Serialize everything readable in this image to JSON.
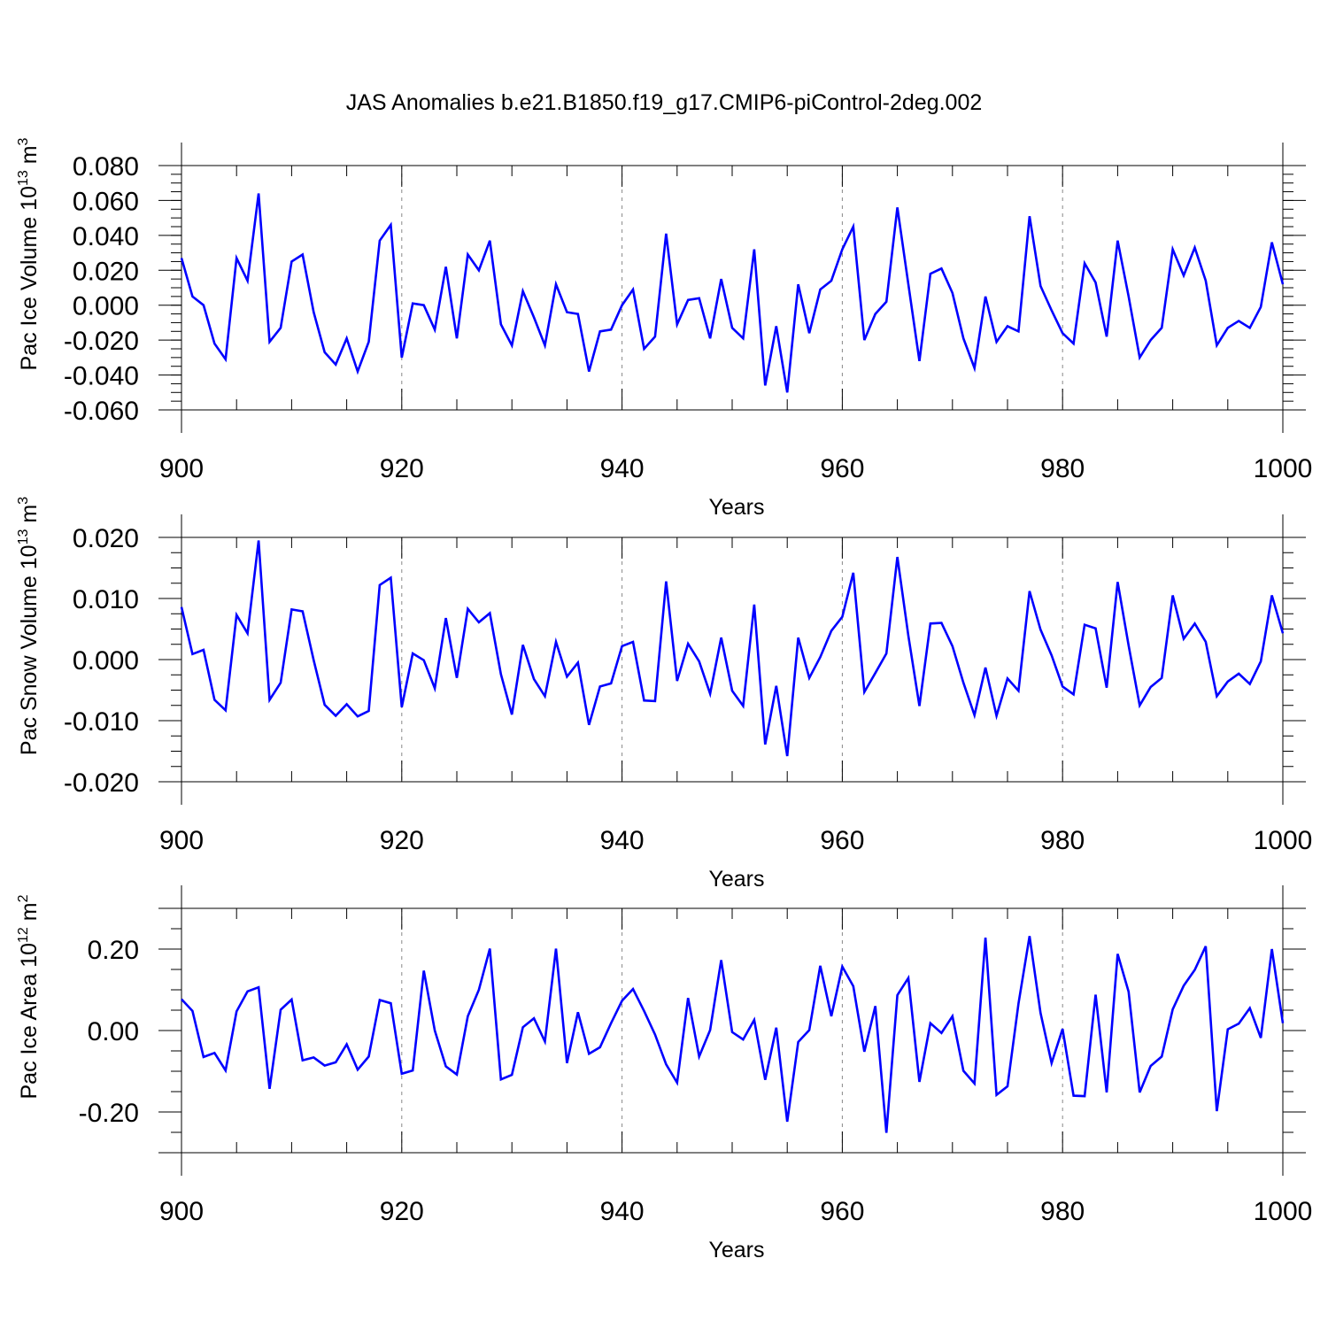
{
  "title": "JAS Anomalies b.e21.B1850.f19_g17.CMIP6-piControl-2deg.002",
  "colors": {
    "line": "#0000ff",
    "axis": "#000000",
    "grid": "#888888"
  },
  "chart_data": [
    {
      "type": "line",
      "ylabel_text": "Pac Ice Volume 10",
      "ylabel_exp": "13",
      "ylabel_unit": "m",
      "ylabel_unit_exp": "3",
      "xlabel": "Years",
      "xlim": [
        900,
        1000
      ],
      "ylim": [
        -0.06,
        0.08
      ],
      "yticks": [
        -0.06,
        -0.04,
        -0.02,
        0.0,
        0.02,
        0.04,
        0.06,
        0.08
      ],
      "ytick_labels": [
        "-0.060",
        "-0.040",
        "-0.020",
        "0.000",
        "0.020",
        "0.040",
        "0.060",
        "0.080"
      ],
      "xticks": [
        900,
        920,
        940,
        960,
        980,
        1000
      ],
      "xtick_labels": [
        "900",
        "920",
        "940",
        "960",
        "980",
        "1000"
      ],
      "x_start": 900,
      "values": [
        0.027,
        0.005,
        0.0,
        -0.022,
        -0.031,
        0.027,
        0.014,
        0.064,
        -0.021,
        -0.013,
        0.025,
        0.029,
        -0.004,
        -0.027,
        -0.034,
        -0.019,
        -0.038,
        -0.021,
        0.037,
        0.046,
        -0.03,
        0.001,
        0.0,
        -0.014,
        0.022,
        -0.019,
        0.029,
        0.02,
        0.037,
        -0.011,
        -0.023,
        0.008,
        -0.007,
        -0.023,
        0.012,
        -0.004,
        -0.005,
        -0.038,
        -0.015,
        -0.014,
        0.0,
        0.009,
        -0.025,
        -0.018,
        0.041,
        -0.011,
        0.003,
        0.004,
        -0.019,
        0.015,
        -0.013,
        -0.019,
        0.032,
        -0.046,
        -0.012,
        -0.05,
        0.012,
        -0.016,
        0.009,
        0.014,
        0.032,
        0.045,
        -0.02,
        -0.005,
        0.002,
        0.056,
        0.012,
        -0.032,
        0.018,
        0.021,
        0.007,
        -0.019,
        -0.036,
        0.005,
        -0.021,
        -0.012,
        -0.015,
        0.051,
        0.011,
        -0.003,
        -0.016,
        -0.022,
        0.024,
        0.013,
        -0.018,
        0.037,
        0.005,
        -0.03,
        -0.02,
        -0.013,
        0.032,
        0.017,
        0.033,
        0.014,
        -0.023,
        -0.013,
        -0.009,
        -0.013,
        -0.001,
        0.036,
        0.012
      ]
    },
    {
      "type": "line",
      "ylabel_text": "Pac Snow Volume 10",
      "ylabel_exp": "13",
      "ylabel_unit": "m",
      "ylabel_unit_exp": "3",
      "xlabel": "Years",
      "xlim": [
        900,
        1000
      ],
      "ylim": [
        -0.02,
        0.02
      ],
      "yticks": [
        -0.02,
        -0.01,
        0.0,
        0.01,
        0.02
      ],
      "ytick_labels": [
        "-0.020",
        "-0.010",
        "0.000",
        "0.010",
        "0.020"
      ],
      "xticks": [
        900,
        920,
        940,
        960,
        980,
        1000
      ],
      "xtick_labels": [
        "900",
        "920",
        "940",
        "960",
        "980",
        "1000"
      ],
      "x_start": 900,
      "values": [
        0.0086,
        0.0009,
        0.0016,
        -0.0066,
        -0.0083,
        0.0073,
        0.0043,
        0.0195,
        -0.0066,
        -0.0038,
        0.0082,
        0.0079,
        -0.0001,
        -0.0074,
        -0.0092,
        -0.0073,
        -0.0093,
        -0.0084,
        0.0122,
        0.0134,
        -0.0078,
        0.001,
        -0.0001,
        -0.0047,
        0.0068,
        -0.003,
        0.0083,
        0.0061,
        0.0076,
        -0.0024,
        -0.009,
        0.0024,
        -0.0032,
        -0.006,
        0.0029,
        -0.0028,
        -0.0005,
        -0.0107,
        -0.0044,
        -0.0039,
        0.0022,
        0.0029,
        -0.0067,
        -0.0068,
        0.0128,
        -0.0035,
        0.0026,
        -0.0003,
        -0.0056,
        0.0036,
        -0.0051,
        -0.0076,
        0.009,
        -0.0139,
        -0.0043,
        -0.0158,
        0.0036,
        -0.003,
        0.0004,
        0.0047,
        0.007,
        0.0142,
        -0.0053,
        -0.0022,
        0.001,
        0.0168,
        0.0039,
        -0.0076,
        0.0059,
        0.006,
        0.0022,
        -0.0038,
        -0.0091,
        -0.0013,
        -0.0092,
        -0.0031,
        -0.0051,
        0.0112,
        0.0049,
        0.0007,
        -0.0044,
        -0.0057,
        0.0057,
        0.0051,
        -0.0046,
        0.0127,
        0.0023,
        -0.0075,
        -0.0045,
        -0.003,
        0.0105,
        0.0034,
        0.0059,
        0.0029,
        -0.006,
        -0.0036,
        -0.0023,
        -0.004,
        -0.0003,
        0.0105,
        0.0043
      ]
    },
    {
      "type": "line",
      "ylabel_text": "Pac Ice Area 10",
      "ylabel_exp": "12",
      "ylabel_unit": "m",
      "ylabel_unit_exp": "2",
      "xlabel": "Years",
      "xlim": [
        900,
        1000
      ],
      "ylim": [
        -0.3,
        0.3
      ],
      "yticks": [
        -0.2,
        0.0,
        0.2
      ],
      "ytick_labels": [
        "-0.20",
        "0.00",
        "0.20"
      ],
      "xticks": [
        900,
        920,
        940,
        960,
        980,
        1000
      ],
      "xtick_labels": [
        "900",
        "920",
        "940",
        "960",
        "980",
        "1000"
      ],
      "x_start": 900,
      "values": [
        0.077,
        0.048,
        -0.065,
        -0.055,
        -0.098,
        0.047,
        0.096,
        0.106,
        -0.143,
        0.051,
        0.076,
        -0.073,
        -0.066,
        -0.086,
        -0.078,
        -0.034,
        -0.096,
        -0.064,
        0.075,
        0.067,
        -0.106,
        -0.098,
        0.147,
        0.0,
        -0.088,
        -0.108,
        0.035,
        0.1,
        0.201,
        -0.12,
        -0.109,
        0.008,
        0.03,
        -0.027,
        0.201,
        -0.08,
        0.045,
        -0.057,
        -0.041,
        0.018,
        0.073,
        0.102,
        0.048,
        -0.01,
        -0.083,
        -0.128,
        0.08,
        -0.064,
        0.001,
        0.173,
        -0.004,
        -0.022,
        0.026,
        -0.121,
        0.007,
        -0.224,
        -0.028,
        0.001,
        0.159,
        0.035,
        0.157,
        0.109,
        -0.052,
        0.06,
        -0.251,
        0.087,
        0.129,
        -0.126,
        0.018,
        -0.006,
        0.035,
        -0.099,
        -0.13,
        0.228,
        -0.158,
        -0.137,
        0.066,
        0.232,
        0.043,
        -0.08,
        0.004,
        -0.16,
        -0.161,
        0.088,
        -0.152,
        0.188,
        0.095,
        -0.152,
        -0.087,
        -0.064,
        0.052,
        0.11,
        0.149,
        0.207,
        -0.198,
        0.003,
        0.017,
        0.055,
        -0.018,
        0.2,
        0.018
      ]
    }
  ]
}
